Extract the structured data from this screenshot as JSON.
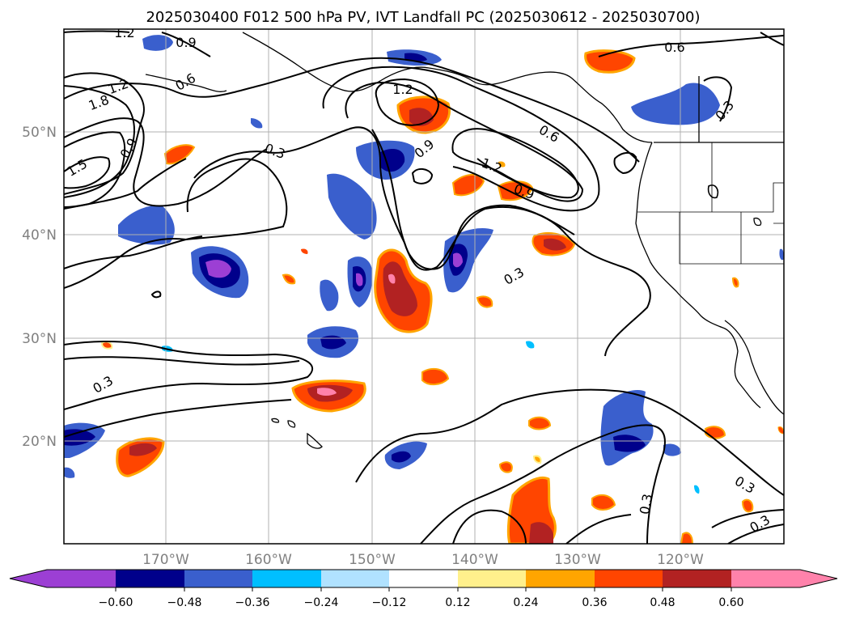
{
  "title": "2025030400 F012 500 hPa PV, IVT Landfall PC (2025030612 - 2025030700)",
  "map": {
    "lon_labels": [
      "170°W",
      "160°W",
      "150°W",
      "140°W",
      "130°W",
      "120°W"
    ],
    "lat_labels": [
      "50°N",
      "40°N",
      "30°N",
      "20°N"
    ],
    "contour_labels": [
      "1.2",
      "0.9",
      "0.6",
      "1.2",
      "1.8",
      "1.5",
      "0.9",
      "0.3",
      "1.2",
      "0.9",
      "0.6",
      "1.2",
      "0.9",
      "0.6",
      "0.3",
      "0.3",
      "0.3",
      "0.3",
      "0.3",
      "0.3"
    ]
  },
  "colorbar": {
    "ticks": [
      "−0.60",
      "−0.48",
      "−0.36",
      "−0.24",
      "−0.12",
      "0.12",
      "0.24",
      "0.36",
      "0.48",
      "0.60"
    ],
    "colors": {
      "neg_extend": "#9c3fd4",
      "neg060": "#00008b",
      "neg048": "#3a5fcd",
      "neg036": "#00bfff",
      "neg024": "#b0e2ff",
      "neutral": "#ffffff",
      "pos012": "#fff08c",
      "pos024": "#ffa500",
      "pos036": "#ff4500",
      "pos048": "#b22222",
      "pos_extend": "#ff82ab"
    }
  }
}
